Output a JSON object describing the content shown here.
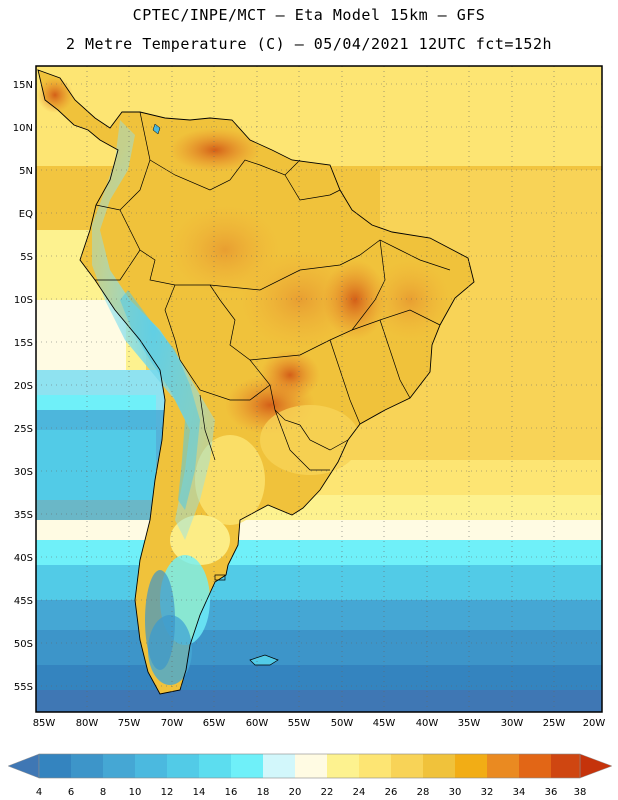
{
  "header": {
    "line1": "CPTEC/INPE/MCT –  Eta Model 15km – GFS",
    "line2": "2 Metre Temperature (C) – 05/04/2021 12UTC fct=152h"
  },
  "map": {
    "lat_labels": [
      "15N",
      "10N",
      "5N",
      "EQ",
      "5S",
      "10S",
      "15S",
      "20S",
      "25S",
      "30S",
      "35S",
      "40S",
      "45S",
      "50S",
      "55S"
    ],
    "lon_labels": [
      "85W",
      "80W",
      "75W",
      "70W",
      "65W",
      "60W",
      "55W",
      "50W",
      "45W",
      "40W",
      "35W",
      "30W",
      "25W",
      "20W"
    ]
  },
  "colorbar": {
    "values": [
      "4",
      "6",
      "8",
      "10",
      "12",
      "14",
      "16",
      "18",
      "20",
      "22",
      "24",
      "26",
      "28",
      "30",
      "32",
      "34",
      "36",
      "38"
    ],
    "colors": [
      "#3f77b4",
      "#3484bf",
      "#3d95c9",
      "#45a7d4",
      "#4bb9df",
      "#52cbe7",
      "#5cddef",
      "#6ff0f9",
      "#d2f7fb",
      "#fffbe3",
      "#fdf28f",
      "#fde573",
      "#f8d357",
      "#f0c23b",
      "#f2ad15",
      "#ea8a21",
      "#e26616",
      "#cf4611",
      "#c5330b"
    ]
  }
}
